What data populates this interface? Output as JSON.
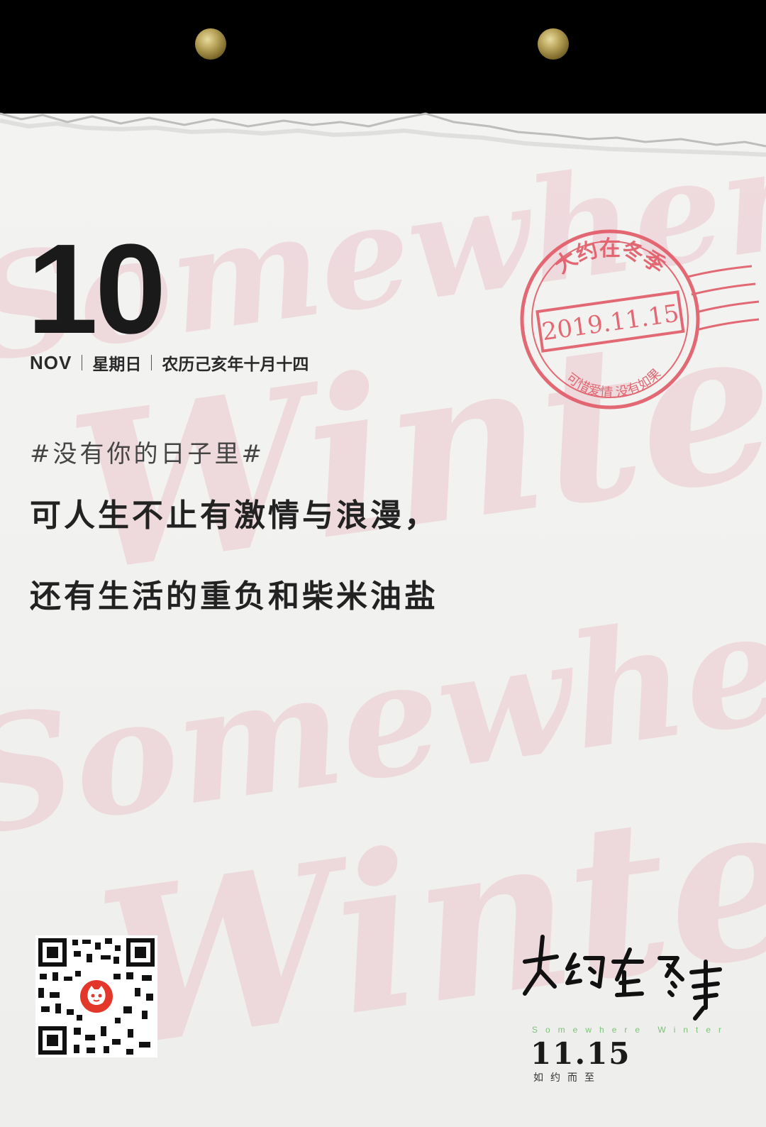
{
  "calendar": {
    "day": "10",
    "month": "NOV",
    "weekday": "星期日",
    "lunar": "农历己亥年十月十四"
  },
  "content": {
    "hashtag": "#没有你的日子里#",
    "line1": "可人生不止有激情与浪漫，",
    "line2": "还有生活的重负和柴米油盐"
  },
  "watermark": {
    "word1": "Somewhere",
    "word2": "Winter"
  },
  "stamp": {
    "top_text": "大约在冬季",
    "date": "2019.11.15",
    "bottom_text": "可惜爱情 没有如果"
  },
  "poster": {
    "logo_title": "大约在冬季",
    "logo_en": "Somewhere Winter",
    "release_date": "11.15",
    "release_note": "如约而至"
  },
  "colors": {
    "stamp_red": "#e0515f",
    "watermark_pink": "#ecc8cf",
    "qr_badge_red": "#e2372a"
  }
}
